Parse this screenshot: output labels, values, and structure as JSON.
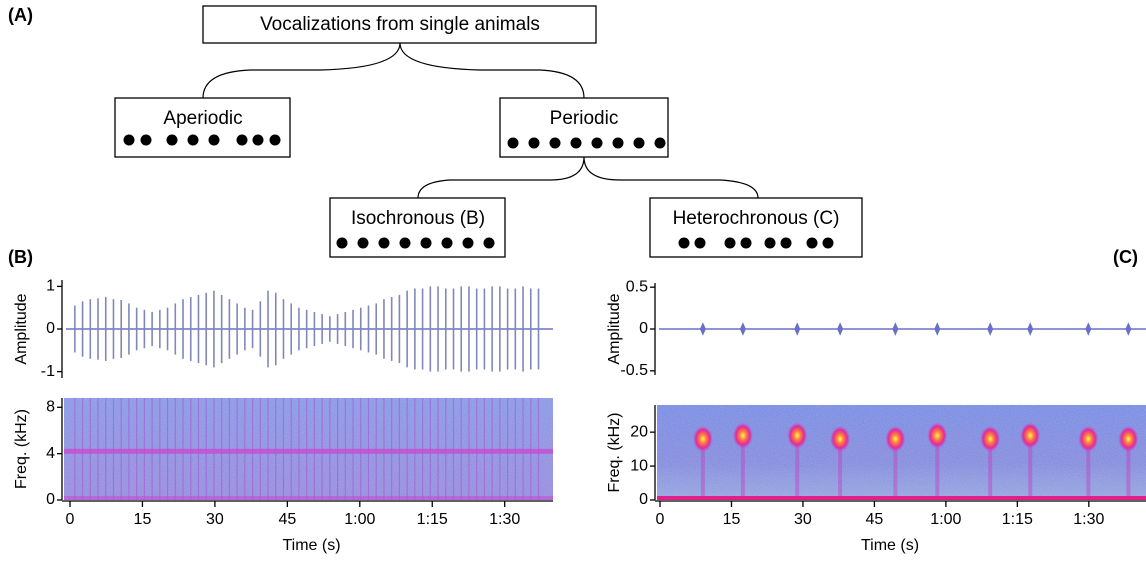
{
  "panel_labels": [
    "(A)",
    "(B)",
    "(C)"
  ],
  "diagram": {
    "nodes": [
      {
        "label": "Vocalizations from single animals"
      },
      {
        "label": "Aperiodic"
      },
      {
        "label": "Periodic"
      },
      {
        "label": "Isochronous (B)"
      },
      {
        "label": "Heterochronous (C)"
      }
    ]
  },
  "chart_data": [
    {
      "type": "waveform",
      "ylabel": "Amplitude",
      "color": "#6870c8",
      "xlim": [
        0,
        100
      ],
      "ylim": [
        -1.15,
        1.15
      ],
      "yticks": [
        -1,
        0,
        1
      ],
      "x": [
        1.0,
        2.6,
        4.2,
        5.8,
        7.4,
        9.0,
        10.6,
        12.2,
        13.8,
        15.4,
        17.0,
        18.6,
        20.2,
        21.8,
        23.4,
        25.0,
        26.6,
        28.2,
        29.8,
        31.4,
        33.0,
        34.6,
        36.2,
        37.8,
        39.4,
        41.0,
        42.6,
        44.2,
        45.8,
        47.4,
        49.0,
        50.6,
        52.2,
        53.8,
        55.4,
        57.0,
        58.6,
        60.2,
        61.8,
        63.4,
        65.0,
        66.6,
        68.2,
        69.8,
        71.4,
        73.0,
        74.6,
        76.2,
        77.8,
        79.4,
        81.0,
        82.6,
        84.2,
        85.8,
        87.4,
        89.0,
        90.6,
        92.2,
        93.8,
        95.4,
        97.0
      ],
      "values": [
        0.55,
        0.65,
        0.7,
        0.72,
        0.75,
        0.7,
        0.68,
        0.6,
        0.5,
        0.45,
        0.4,
        0.45,
        0.5,
        0.6,
        0.7,
        0.75,
        0.8,
        0.85,
        0.9,
        0.8,
        0.7,
        0.6,
        0.5,
        0.45,
        0.65,
        0.9,
        0.85,
        0.7,
        0.6,
        0.5,
        0.45,
        0.4,
        0.35,
        0.3,
        0.35,
        0.4,
        0.45,
        0.5,
        0.55,
        0.6,
        0.7,
        0.75,
        0.8,
        0.9,
        0.95,
        0.95,
        1,
        1,
        0.95,
        0.95,
        1,
        1,
        0.95,
        0.95,
        1,
        1,
        0.95,
        0.95,
        1,
        0.95,
        0.95
      ]
    },
    {
      "type": "spectrogram",
      "ylabel": "Freq. (kHz)",
      "xlabel": "Time (s)",
      "xlim": [
        0,
        100
      ],
      "ylim": [
        0,
        8.8
      ],
      "yticks": [
        0,
        4,
        8
      ],
      "xticks": [
        0,
        15,
        30,
        45,
        {
          "value": 60,
          "label": "1:00"
        },
        {
          "value": 75,
          "label": "1:15"
        },
        {
          "value": 90,
          "label": "1:30"
        }
      ],
      "dominant_frequency": 4.2,
      "x": [
        1.0,
        2.6,
        4.2,
        5.8,
        7.4,
        9.0,
        10.6,
        12.2,
        13.8,
        15.4,
        17.0,
        18.6,
        20.2,
        21.8,
        23.4,
        25.0,
        26.6,
        28.2,
        29.8,
        31.4,
        33.0,
        34.6,
        36.2,
        37.8,
        39.4,
        41.0,
        42.6,
        44.2,
        45.8,
        47.4,
        49.0,
        50.6,
        52.2,
        53.8,
        55.4,
        57.0,
        58.6,
        60.2,
        61.8,
        63.4,
        65.0,
        66.6,
        68.2,
        69.8,
        71.4,
        73.0,
        74.6,
        76.2,
        77.8,
        79.4,
        81.0,
        82.6,
        84.2,
        85.8,
        87.4,
        89.0,
        90.6,
        92.2,
        93.8,
        95.4,
        97.0
      ]
    },
    {
      "type": "waveform",
      "ylabel": "Amplitude",
      "color": "#6870c8",
      "xlim": [
        0,
        102
      ],
      "ylim": [
        -0.55,
        0.55
      ],
      "yticks": [
        -0.5,
        0,
        0.5
      ],
      "x": [
        9.0,
        17.4,
        28.8,
        37.8,
        49.4,
        58.2,
        69.3,
        77.7,
        89.9,
        98.3
      ],
      "values": [
        0.08,
        0.08,
        0.08,
        0.08,
        0.08,
        0.08,
        0.08,
        0.08,
        0.08,
        0.08
      ]
    },
    {
      "type": "spectrogram",
      "ylabel": "Freq. (kHz)",
      "xlabel": "Time (s)",
      "xlim": [
        0,
        102
      ],
      "ylim": [
        0,
        28
      ],
      "yticks": [
        0,
        10,
        20
      ],
      "xticks": [
        0,
        15,
        30,
        45,
        {
          "value": 60,
          "label": "1:00"
        },
        {
          "value": 75,
          "label": "1:15"
        },
        {
          "value": 90,
          "label": "1:30"
        }
      ],
      "x": [
        9.0,
        17.4,
        28.8,
        37.8,
        49.4,
        58.2,
        69.3,
        77.7,
        89.9,
        98.3
      ],
      "values": [
        18,
        19,
        19,
        18,
        18,
        19,
        18,
        19,
        18,
        18
      ]
    }
  ]
}
